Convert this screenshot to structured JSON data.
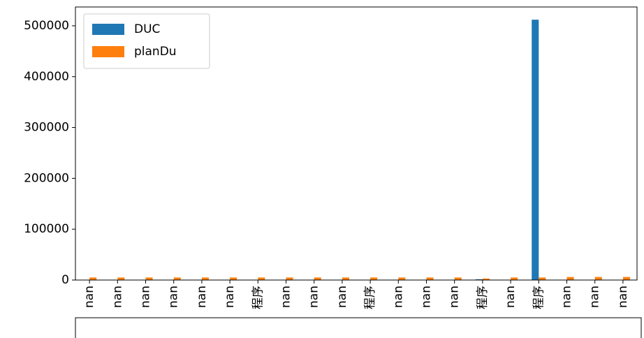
{
  "chart_data": {
    "type": "bar",
    "categories": [
      "nan",
      "nan",
      "nan",
      "nan",
      "nan",
      "nan",
      "程序",
      "nan",
      "nan",
      "nan",
      "程序",
      "nan",
      "nan",
      "nan",
      "程序",
      "nan",
      "程序",
      "nan",
      "nan",
      "nan"
    ],
    "series": [
      {
        "name": "DUC",
        "color": "#1f77b4",
        "values": [
          0,
          0,
          0,
          0,
          0,
          0,
          0,
          0,
          0,
          0,
          0,
          0,
          0,
          0,
          1500,
          0,
          512000,
          0,
          0,
          0
        ]
      },
      {
        "name": "planDu",
        "color": "#ff7f0e",
        "values": [
          5000,
          5000,
          5000,
          5000,
          5000,
          5000,
          5000,
          5000,
          5000,
          5000,
          5000,
          5000,
          5000,
          5000,
          3000,
          5000,
          5000,
          6000,
          6000,
          6000
        ]
      }
    ],
    "ylim": [
      0,
      537000
    ],
    "yticks": [
      0,
      100000,
      200000,
      300000,
      400000,
      500000
    ],
    "legend": "upper left"
  }
}
